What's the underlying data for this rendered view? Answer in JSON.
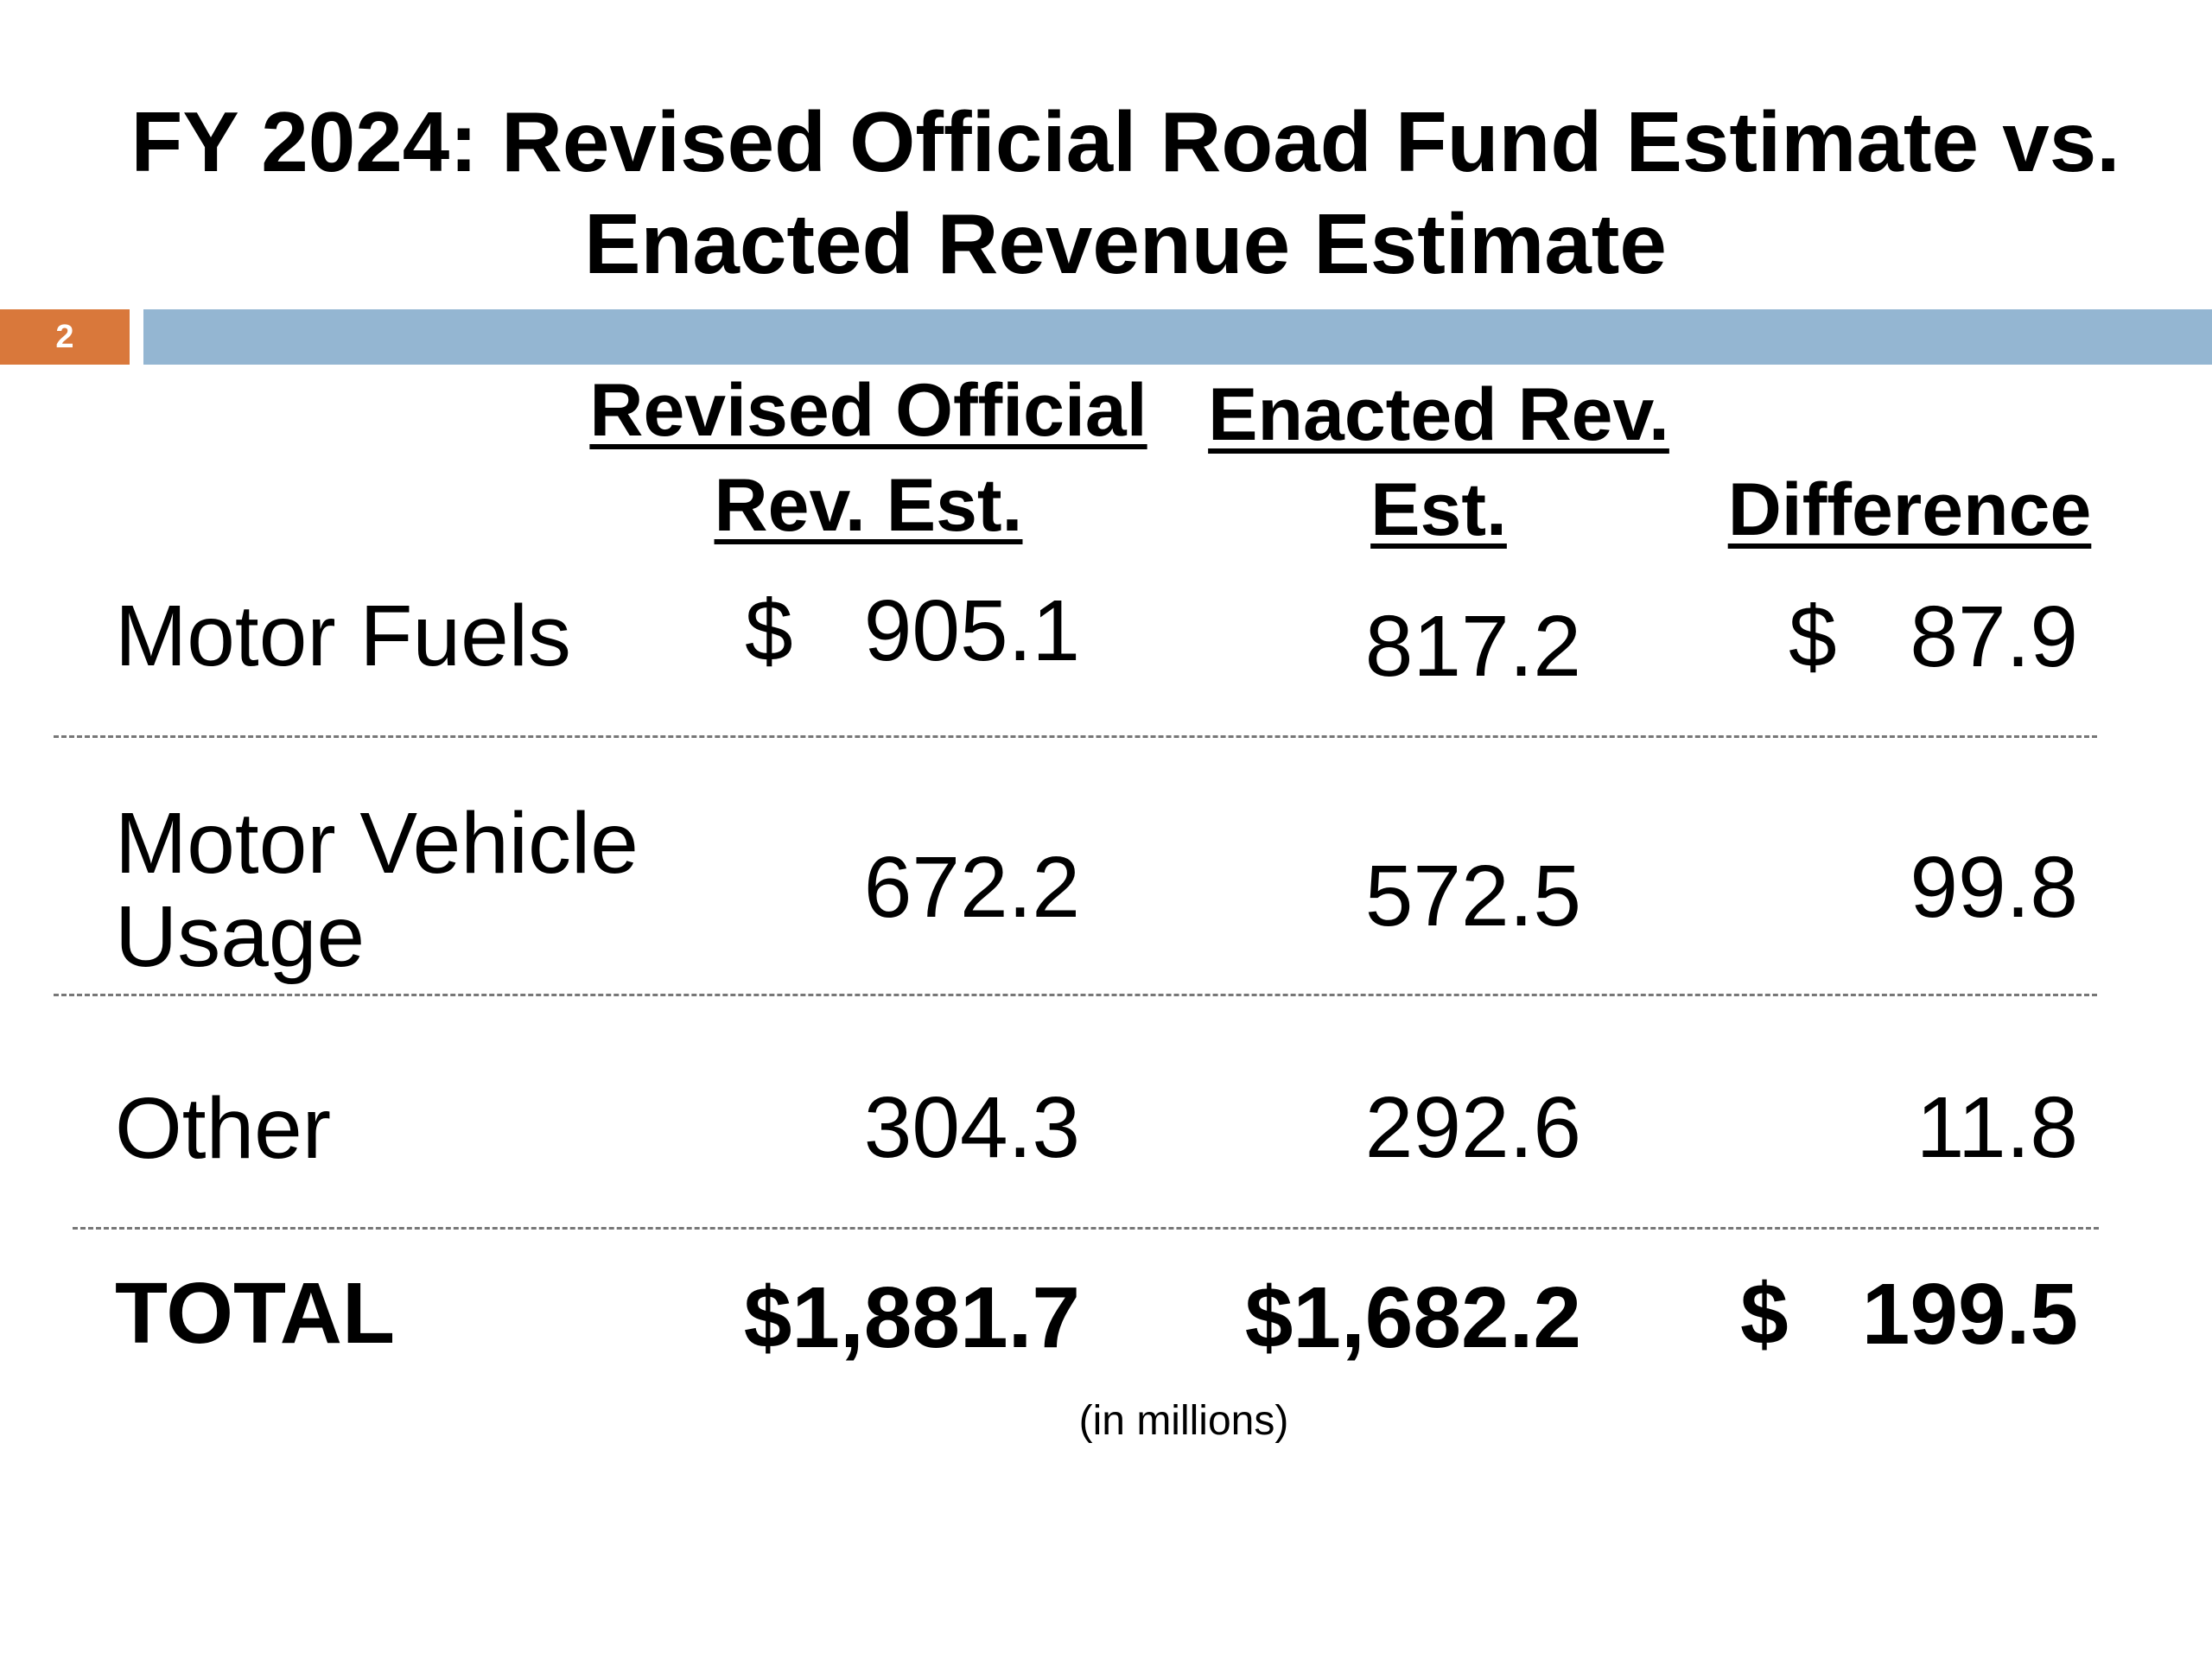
{
  "slide": {
    "title_line1": "FY 2024: Revised Official Road Fund Estimate vs.",
    "title_line2": "Enacted Revenue Estimate",
    "page_number": "2",
    "accent_color": "#D9783B",
    "bar_color": "#94B6D2"
  },
  "table": {
    "headers": {
      "revised_line1": "Revised Official",
      "revised_line2": "Rev. Est.",
      "enacted_line1": "Enacted Rev.",
      "enacted_line2": "Est.",
      "difference": "Difference"
    },
    "rows": [
      {
        "label": "Motor Fuels",
        "revised_sign": "$",
        "revised": "905.1",
        "enacted": "817.2",
        "diff_sign": "$",
        "difference": "87.9"
      },
      {
        "label_line1": "Motor Vehicle",
        "label_line2": "Usage",
        "revised": "672.2",
        "enacted": "572.5",
        "difference": "99.8"
      },
      {
        "label": "Other",
        "revised": "304.3",
        "enacted": "292.6",
        "difference": "11.8"
      }
    ],
    "total": {
      "label": "TOTAL",
      "revised": "$1,881.7",
      "enacted": "$1,682.2",
      "diff_sign": "$",
      "difference": "199.5"
    },
    "note": "(in millions)"
  }
}
